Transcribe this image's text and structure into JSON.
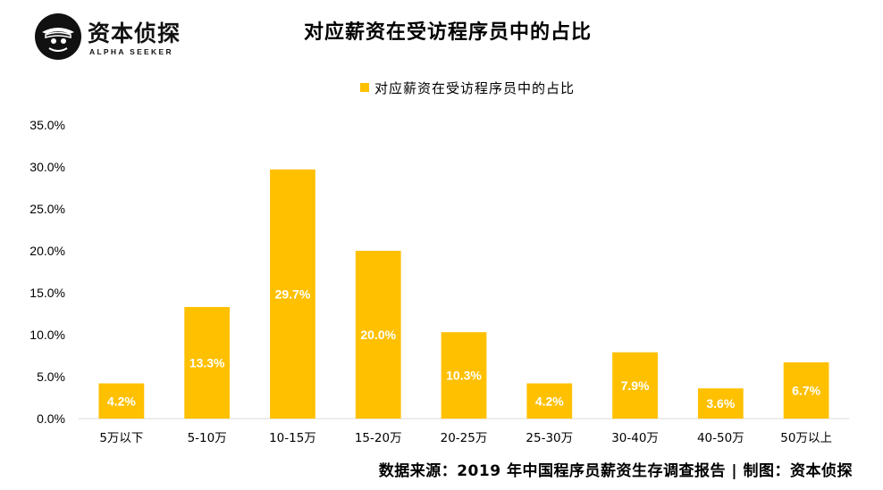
{
  "logo": {
    "name": "资本侦探",
    "tagline": "ALPHA SEEKER"
  },
  "source_note": "数据来源：2019 年中国程序员薪资生存调查报告 | 制图：资本侦探",
  "colors": {
    "bar": "#FFC000",
    "axis": "#d9d9d9",
    "label": "#ffffff"
  },
  "chart_data": {
    "type": "bar",
    "title": "对应薪资在受访程序员中的占比",
    "legend_position": "top",
    "grid": false,
    "categories": [
      "5万以下",
      "5-10万",
      "10-15万",
      "15-20万",
      "20-25万",
      "25-30万",
      "30-40万",
      "40-50万",
      "50万以上"
    ],
    "series": [
      {
        "name": "对应薪资在受访程序员中的占比",
        "values": [
          4.2,
          13.3,
          29.7,
          20.0,
          10.3,
          4.2,
          7.9,
          3.6,
          6.7
        ],
        "labels": [
          "4.2%",
          "13.3%",
          "29.7%",
          "20.0%",
          "10.3%",
          "4.2%",
          "7.9%",
          "3.6%",
          "6.7%"
        ]
      }
    ],
    "ylim": [
      0,
      35
    ],
    "yticks": [
      "0.0%",
      "5.0%",
      "10.0%",
      "15.0%",
      "20.0%",
      "25.0%",
      "30.0%",
      "35.0%"
    ],
    "xlabel": "",
    "ylabel": ""
  }
}
